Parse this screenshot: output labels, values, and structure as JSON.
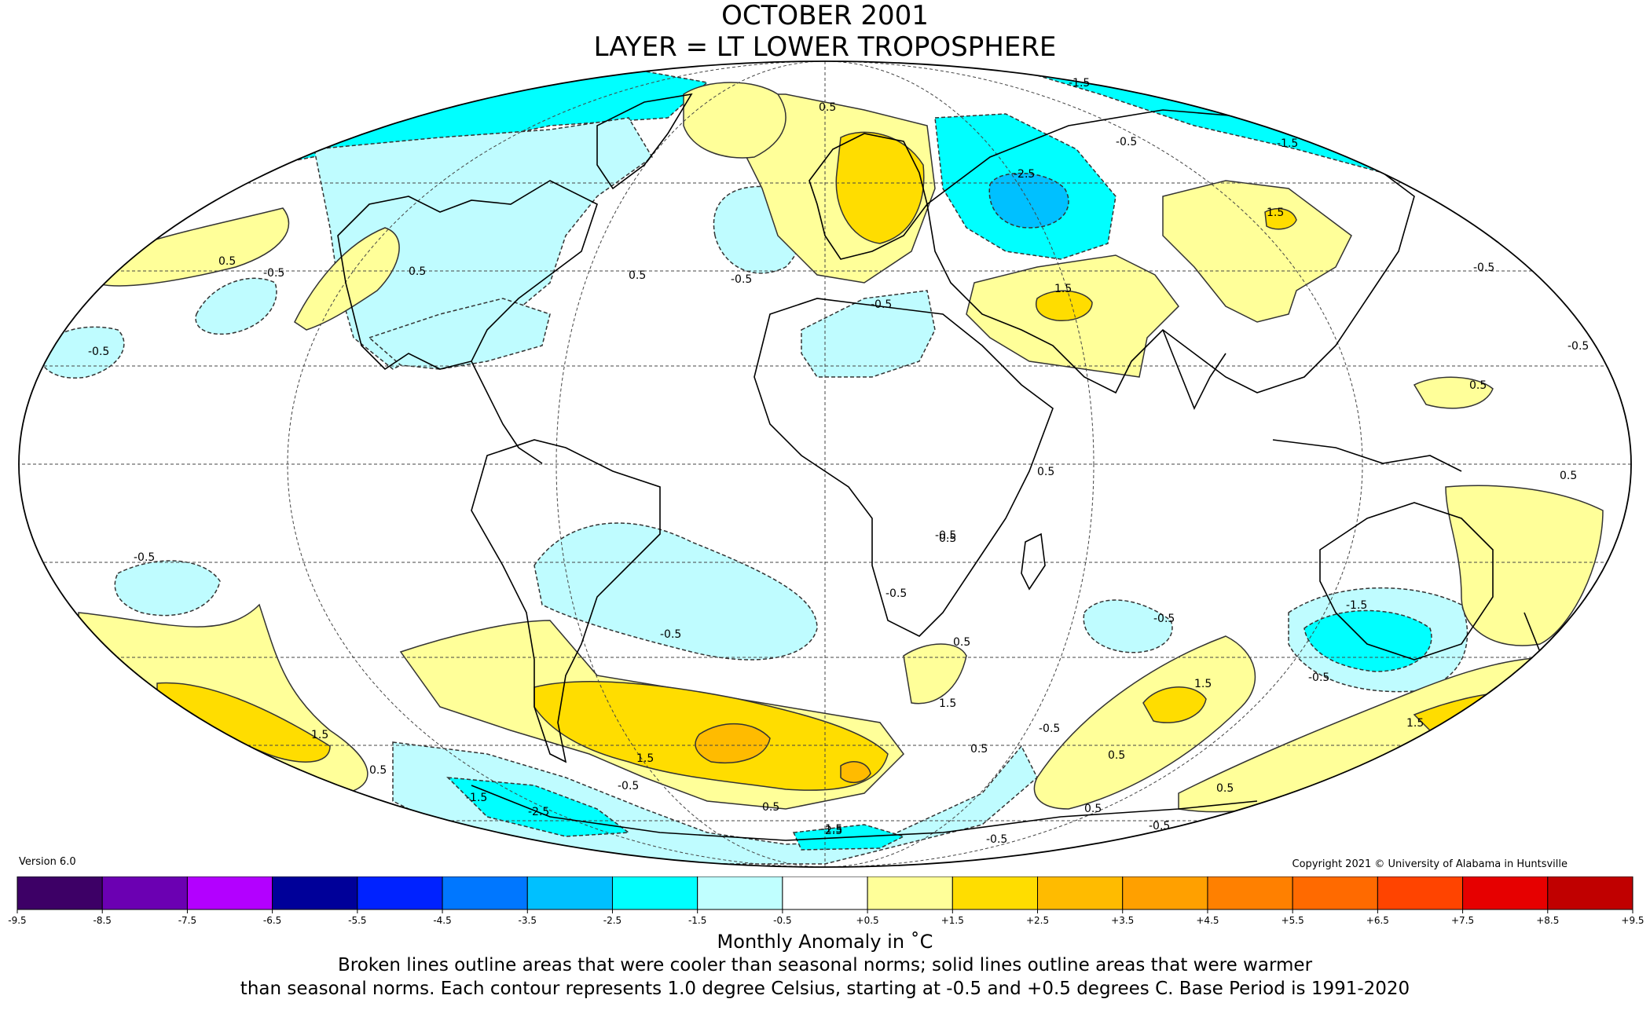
{
  "title": {
    "line1": "OCTOBER 2001",
    "line2": "LAYER = LT LOWER TROPOSPHERE"
  },
  "version": "Version 6.0",
  "copyright": "Copyright 2021 © University of Alabama in Huntsville",
  "legend": {
    "units_label": "Monthly Anomaly in ˚C",
    "description_line1": "Broken lines outline areas that were cooler than seasonal norms; solid lines outline areas that were warmer",
    "description_line2": "than seasonal norms. Each contour represents 1.0 degree Celsius, starting at -0.5 and +0.5 degrees C. Base Period is 1991-2020",
    "ticks": [
      "-9.5",
      "-8.5",
      "-7.5",
      "-6.5",
      "-5.5",
      "-4.5",
      "-3.5",
      "-2.5",
      "-1.5",
      "-0.5",
      "+0.5",
      "+1.5",
      "+2.5",
      "+3.5",
      "+4.5",
      "+5.5",
      "+6.5",
      "+7.5",
      "+8.5",
      "+9.5"
    ],
    "colors": [
      "#3d0066",
      "#6b00b2",
      "#b300ff",
      "#000099",
      "#0022ff",
      "#0077ff",
      "#00c0ff",
      "#00ffff",
      "#c0ffff",
      "#ffffff",
      "#ffff99",
      "#ffdd00",
      "#ffbb00",
      "#ffa000",
      "#ff8000",
      "#ff6a00",
      "#ff4400",
      "#e60000",
      "#c00000"
    ]
  },
  "map": {
    "projection": "Mollweide",
    "colors": {
      "light_cyan": "#bffcff",
      "cyan": "#00ffff",
      "mid_blue": "#00c0ff",
      "pale_yellow": "#ffff99",
      "gold": "#ffdd00",
      "orange": "#ffbb00"
    },
    "contour_labels": [
      "-0.5",
      "-0.5",
      "-0.5",
      "-0.5",
      "-0.5",
      "-0.5",
      "-0.5",
      "-0.5",
      "-0.5",
      "-0.5",
      "-0.5",
      "-0.5",
      "-0.5",
      "-0.5",
      "-0.5",
      "-0.5",
      "-0.5",
      "-1.5",
      "-1.5",
      "-1.5",
      "-1.5",
      "-1.5",
      "-2.5",
      "-2.5",
      "0.5",
      "0.5",
      "0.5",
      "0.5",
      "0.5",
      "0.5",
      "0.5",
      "0.5",
      "0.5",
      "0.5",
      "0.5",
      "0.5",
      "0.5",
      "0.5",
      "0.5",
      "1.5",
      "1.5",
      "1.5",
      "1.5",
      "1.5",
      "1.5",
      "1.5",
      "2.5"
    ]
  }
}
